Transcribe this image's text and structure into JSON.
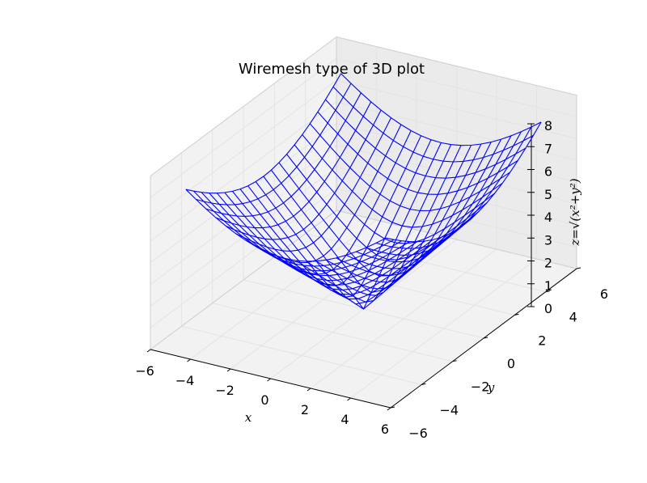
{
  "chart_data": {
    "type": "wireframe3d",
    "title": "Wiremesh type of 3D plot",
    "xlabel": "x",
    "ylabel": "y",
    "zlabel": "z=√(x²+y²)",
    "function": "z = sqrt(x^2 + y^2)",
    "x_range": [
      -5,
      5
    ],
    "y_range": [
      -5,
      5
    ],
    "grid_steps": 20,
    "xlim": [
      -6,
      6
    ],
    "ylim": [
      -6,
      6
    ],
    "zlim": [
      0,
      8
    ],
    "x_ticks": [
      "−6",
      "−4",
      "−2",
      "0",
      "2",
      "4",
      "6"
    ],
    "y_ticks": [
      "−6",
      "−4",
      "−2",
      "0",
      "2",
      "4",
      "6"
    ],
    "z_ticks": [
      "0",
      "1",
      "2",
      "3",
      "4",
      "5",
      "6",
      "7",
      "8"
    ],
    "line_color": "#0000ff",
    "pane_color": "#f2f2f2",
    "grid": true
  }
}
